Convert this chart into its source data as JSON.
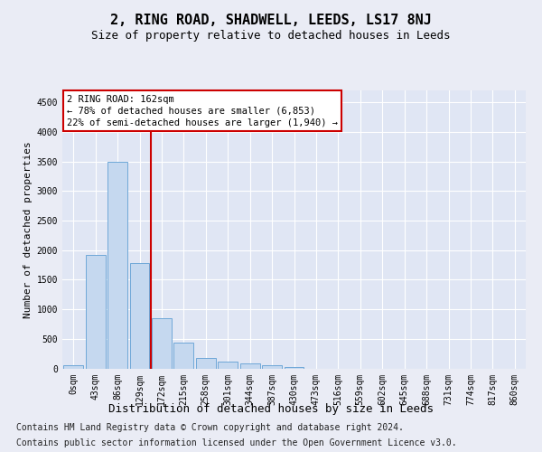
{
  "title": "2, RING ROAD, SHADWELL, LEEDS, LS17 8NJ",
  "subtitle": "Size of property relative to detached houses in Leeds",
  "xlabel": "Distribution of detached houses by size in Leeds",
  "ylabel": "Number of detached properties",
  "bar_color": "#c5d8ef",
  "bar_edge_color": "#6fa8d8",
  "background_color": "#eaecf5",
  "plot_bg_color": "#e0e6f4",
  "grid_color": "#ffffff",
  "vline_color": "#cc0000",
  "vline_position": 3.5,
  "annotation_text": "2 RING ROAD: 162sqm\n← 78% of detached houses are smaller (6,853)\n22% of semi-detached houses are larger (1,940) →",
  "annotation_box_facecolor": "white",
  "annotation_box_edgecolor": "#cc0000",
  "categories": [
    "0sqm",
    "43sqm",
    "86sqm",
    "129sqm",
    "172sqm",
    "215sqm",
    "258sqm",
    "301sqm",
    "344sqm",
    "387sqm",
    "430sqm",
    "473sqm",
    "516sqm",
    "559sqm",
    "602sqm",
    "645sqm",
    "688sqm",
    "731sqm",
    "774sqm",
    "817sqm",
    "860sqm"
  ],
  "values": [
    50,
    1920,
    3500,
    1780,
    850,
    440,
    175,
    110,
    80,
    50,
    20,
    0,
    0,
    0,
    0,
    0,
    0,
    0,
    0,
    0,
    0
  ],
  "ylim": [
    0,
    4700
  ],
  "yticks": [
    0,
    500,
    1000,
    1500,
    2000,
    2500,
    3000,
    3500,
    4000,
    4500
  ],
  "footer_line1": "Contains HM Land Registry data © Crown copyright and database right 2024.",
  "footer_line2": "Contains public sector information licensed under the Open Government Licence v3.0.",
  "footer_fontsize": 7.0,
  "title_fontsize": 11,
  "subtitle_fontsize": 9,
  "tick_fontsize": 7,
  "ylabel_fontsize": 8,
  "xlabel_fontsize": 9
}
